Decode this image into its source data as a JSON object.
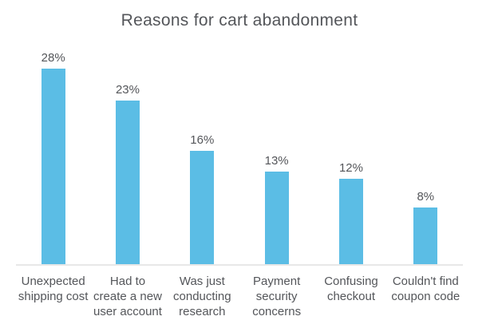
{
  "chart_data": {
    "type": "bar",
    "title": "Reasons for cart abandonment",
    "categories": [
      "Unexpected\nshipping cost",
      "Had to\ncreate a new\nuser account",
      "Was just\nconducting\nresearch",
      "Payment\nsecurity\nconcerns",
      "Confusing\ncheckout",
      "Couldn't find\ncoupon code"
    ],
    "values": [
      28,
      23,
      16,
      13,
      12,
      8
    ],
    "value_labels": [
      "28%",
      "23%",
      "16%",
      "13%",
      "12%",
      "8%"
    ],
    "xlabel": "",
    "ylabel": "",
    "ylim": [
      0,
      30
    ],
    "grid": "off",
    "legend_position": "none",
    "bar_color": "#5bbde5",
    "text_color": "#54565a",
    "axis_line_color": "#e8e8e8"
  }
}
